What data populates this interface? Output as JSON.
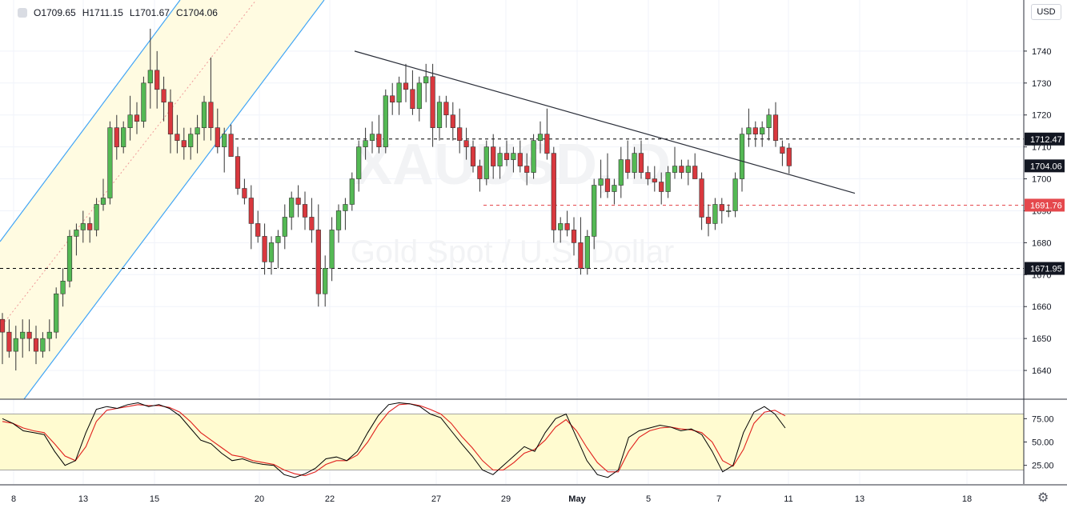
{
  "header": {
    "open": "O1709.65",
    "high": "H1711.15",
    "low": "L1701.67",
    "close": "C1704.06",
    "currency": "USD"
  },
  "watermark": {
    "symbol": "XAUUSD, D",
    "description": "Gold Spot / U.S. Dollar"
  },
  "colors": {
    "up": "#54b954",
    "down": "#d9383e",
    "grid": "#f0f3fa",
    "channel_line": "#42a5f5",
    "channel_fill": "#fffbe1",
    "trendline": "#2a2e39",
    "stoch_k": "#000000",
    "stoch_d": "#e0201d",
    "stoch_band": "#fffbd0",
    "red_level": "#e5484d"
  },
  "chart_data": {
    "type": "candlestick",
    "price_axis": {
      "ylim": [
        1631,
        1756
      ],
      "ticks": [
        1640,
        1650,
        1660,
        1670,
        1680,
        1690,
        1700,
        1710,
        1720,
        1730,
        1740
      ]
    },
    "time_axis": [
      "8",
      "13",
      "15",
      "20",
      "22",
      "27",
      "29",
      "May",
      "5",
      "7",
      "11",
      "13",
      "18"
    ],
    "price_labels": [
      {
        "value": 1712.47,
        "label": "1712.47",
        "style": "dark"
      },
      {
        "value": 1704.06,
        "label": "1704.06",
        "style": "dark"
      },
      {
        "value": 1691.76,
        "label": "1691.76",
        "style": "red"
      },
      {
        "value": 1671.95,
        "label": "1671.95",
        "style": "dark"
      }
    ],
    "ohlc": [
      [
        1656,
        1658,
        1642,
        1652
      ],
      [
        1652,
        1656,
        1644,
        1646
      ],
      [
        1646,
        1654,
        1640,
        1650
      ],
      [
        1650,
        1656,
        1644,
        1652
      ],
      [
        1652,
        1656,
        1646,
        1650
      ],
      [
        1650,
        1654,
        1642,
        1646
      ],
      [
        1646,
        1652,
        1644,
        1650
      ],
      [
        1650,
        1656,
        1646,
        1652
      ],
      [
        1652,
        1666,
        1650,
        1664
      ],
      [
        1664,
        1672,
        1660,
        1668
      ],
      [
        1668,
        1684,
        1666,
        1682
      ],
      [
        1682,
        1686,
        1676,
        1684
      ],
      [
        1684,
        1690,
        1680,
        1686
      ],
      [
        1686,
        1688,
        1680,
        1684
      ],
      [
        1684,
        1694,
        1682,
        1692
      ],
      [
        1692,
        1700,
        1690,
        1694
      ],
      [
        1694,
        1718,
        1692,
        1716
      ],
      [
        1716,
        1720,
        1706,
        1710
      ],
      [
        1710,
        1718,
        1708,
        1716
      ],
      [
        1716,
        1726,
        1712,
        1720
      ],
      [
        1720,
        1724,
        1714,
        1718
      ],
      [
        1718,
        1732,
        1716,
        1730
      ],
      [
        1730,
        1747,
        1722,
        1734
      ],
      [
        1734,
        1740,
        1722,
        1728
      ],
      [
        1728,
        1732,
        1718,
        1724
      ],
      [
        1724,
        1728,
        1708,
        1714
      ],
      [
        1714,
        1720,
        1708,
        1712
      ],
      [
        1712,
        1716,
        1706,
        1710
      ],
      [
        1710,
        1716,
        1706,
        1714
      ],
      [
        1714,
        1720,
        1708,
        1716
      ],
      [
        1716,
        1726,
        1712,
        1724
      ],
      [
        1724,
        1738,
        1712,
        1716
      ],
      [
        1716,
        1722,
        1708,
        1710
      ],
      [
        1710,
        1716,
        1702,
        1714
      ],
      [
        1714,
        1717,
        1708,
        1707
      ],
      [
        1707,
        1710,
        1695,
        1697
      ],
      [
        1697,
        1700,
        1692,
        1694
      ],
      [
        1694,
        1698,
        1678,
        1686
      ],
      [
        1686,
        1690,
        1680,
        1682
      ],
      [
        1682,
        1686,
        1670,
        1674
      ],
      [
        1674,
        1682,
        1670,
        1680
      ],
      [
        1680,
        1684,
        1672,
        1682
      ],
      [
        1682,
        1692,
        1678,
        1688
      ],
      [
        1688,
        1696,
        1684,
        1694
      ],
      [
        1694,
        1698,
        1688,
        1692
      ],
      [
        1692,
        1696,
        1684,
        1688
      ],
      [
        1688,
        1694,
        1680,
        1684
      ],
      [
        1684,
        1692,
        1660,
        1664
      ],
      [
        1664,
        1676,
        1660,
        1672
      ],
      [
        1672,
        1688,
        1668,
        1684
      ],
      [
        1684,
        1692,
        1680,
        1690
      ],
      [
        1690,
        1694,
        1684,
        1692
      ],
      [
        1692,
        1702,
        1690,
        1700
      ],
      [
        1700,
        1712,
        1696,
        1710
      ],
      [
        1710,
        1716,
        1706,
        1712
      ],
      [
        1712,
        1718,
        1708,
        1714
      ],
      [
        1714,
        1720,
        1708,
        1710
      ],
      [
        1710,
        1728,
        1708,
        1726
      ],
      [
        1726,
        1730,
        1720,
        1724
      ],
      [
        1724,
        1732,
        1720,
        1730
      ],
      [
        1730,
        1736,
        1724,
        1728
      ],
      [
        1728,
        1734,
        1720,
        1722
      ],
      [
        1722,
        1732,
        1718,
        1730
      ],
      [
        1730,
        1736,
        1724,
        1732
      ],
      [
        1732,
        1736,
        1710,
        1716
      ],
      [
        1716,
        1726,
        1712,
        1724
      ],
      [
        1724,
        1726,
        1716,
        1720
      ],
      [
        1720,
        1724,
        1712,
        1716
      ],
      [
        1716,
        1722,
        1708,
        1712
      ],
      [
        1712,
        1716,
        1706,
        1710
      ],
      [
        1710,
        1712,
        1702,
        1704
      ],
      [
        1704,
        1706,
        1696,
        1700
      ],
      [
        1700,
        1712,
        1698,
        1710
      ],
      [
        1710,
        1714,
        1700,
        1704
      ],
      [
        1704,
        1710,
        1700,
        1708
      ],
      [
        1708,
        1712,
        1704,
        1706
      ],
      [
        1706,
        1710,
        1702,
        1708
      ],
      [
        1708,
        1712,
        1702,
        1704
      ],
      [
        1704,
        1708,
        1698,
        1702
      ],
      [
        1702,
        1714,
        1700,
        1712
      ],
      [
        1712,
        1718,
        1708,
        1714
      ],
      [
        1714,
        1722,
        1706,
        1708
      ],
      [
        1708,
        1710,
        1680,
        1684
      ],
      [
        1684,
        1688,
        1680,
        1686
      ],
      [
        1686,
        1690,
        1682,
        1684
      ],
      [
        1684,
        1688,
        1676,
        1680
      ],
      [
        1680,
        1688,
        1670,
        1672
      ],
      [
        1672,
        1684,
        1670,
        1682
      ],
      [
        1682,
        1700,
        1678,
        1698
      ],
      [
        1698,
        1706,
        1694,
        1700
      ],
      [
        1700,
        1708,
        1694,
        1696
      ],
      [
        1696,
        1700,
        1692,
        1698
      ],
      [
        1698,
        1710,
        1694,
        1706
      ],
      [
        1706,
        1712,
        1700,
        1702
      ],
      [
        1702,
        1710,
        1700,
        1708
      ],
      [
        1708,
        1712,
        1700,
        1702
      ],
      [
        1702,
        1704,
        1698,
        1700
      ],
      [
        1700,
        1704,
        1696,
        1699
      ],
      [
        1699,
        1702,
        1692,
        1696
      ],
      [
        1696,
        1704,
        1694,
        1702
      ],
      [
        1702,
        1710,
        1700,
        1704
      ],
      [
        1704,
        1706,
        1700,
        1702
      ],
      [
        1702,
        1706,
        1698,
        1704
      ],
      [
        1704,
        1708,
        1700,
        1700
      ],
      [
        1700,
        1702,
        1684,
        1688
      ],
      [
        1688,
        1692,
        1682,
        1686
      ],
      [
        1686,
        1694,
        1684,
        1692
      ],
      [
        1692,
        1694,
        1686,
        1690
      ],
      [
        1690,
        1692,
        1688,
        1690
      ],
      [
        1690,
        1702,
        1688,
        1700
      ],
      [
        1700,
        1716,
        1696,
        1714
      ],
      [
        1714,
        1722,
        1710,
        1716
      ],
      [
        1716,
        1718,
        1710,
        1714
      ],
      [
        1714,
        1718,
        1710,
        1716
      ],
      [
        1716,
        1722,
        1712,
        1720
      ],
      [
        1720,
        1724,
        1710,
        1712
      ],
      [
        1710,
        1712,
        1704,
        1708
      ],
      [
        1709.65,
        1711.15,
        1701.67,
        1704.06
      ]
    ],
    "stochastic": {
      "ylim": [
        5,
        95
      ],
      "band": [
        20,
        80
      ],
      "ticks": [
        "25.00",
        "50.00",
        "75.00"
      ],
      "k": [
        75,
        70,
        62,
        60,
        58,
        40,
        25,
        30,
        60,
        85,
        88,
        86,
        90,
        92,
        88,
        90,
        86,
        78,
        65,
        52,
        48,
        38,
        30,
        32,
        28,
        26,
        25,
        15,
        12,
        16,
        22,
        32,
        34,
        30,
        40,
        60,
        78,
        90,
        92,
        91,
        88,
        80,
        76,
        62,
        48,
        35,
        20,
        15,
        25,
        35,
        45,
        40,
        60,
        75,
        80,
        55,
        30,
        15,
        12,
        20,
        55,
        62,
        65,
        68,
        66,
        62,
        64,
        58,
        40,
        18,
        25,
        60,
        82,
        88,
        80,
        65
      ],
      "d": [
        72,
        70,
        65,
        62,
        60,
        48,
        35,
        30,
        45,
        72,
        84,
        86,
        88,
        90,
        89,
        89,
        87,
        82,
        72,
        60,
        52,
        44,
        36,
        34,
        30,
        28,
        26,
        20,
        16,
        14,
        18,
        26,
        30,
        30,
        36,
        50,
        68,
        82,
        90,
        91,
        89,
        85,
        80,
        70,
        56,
        44,
        30,
        20,
        20,
        28,
        38,
        42,
        52,
        66,
        74,
        62,
        44,
        28,
        18,
        18,
        40,
        55,
        62,
        65,
        66,
        64,
        63,
        60,
        50,
        30,
        24,
        42,
        70,
        82,
        84,
        78
      ]
    }
  }
}
